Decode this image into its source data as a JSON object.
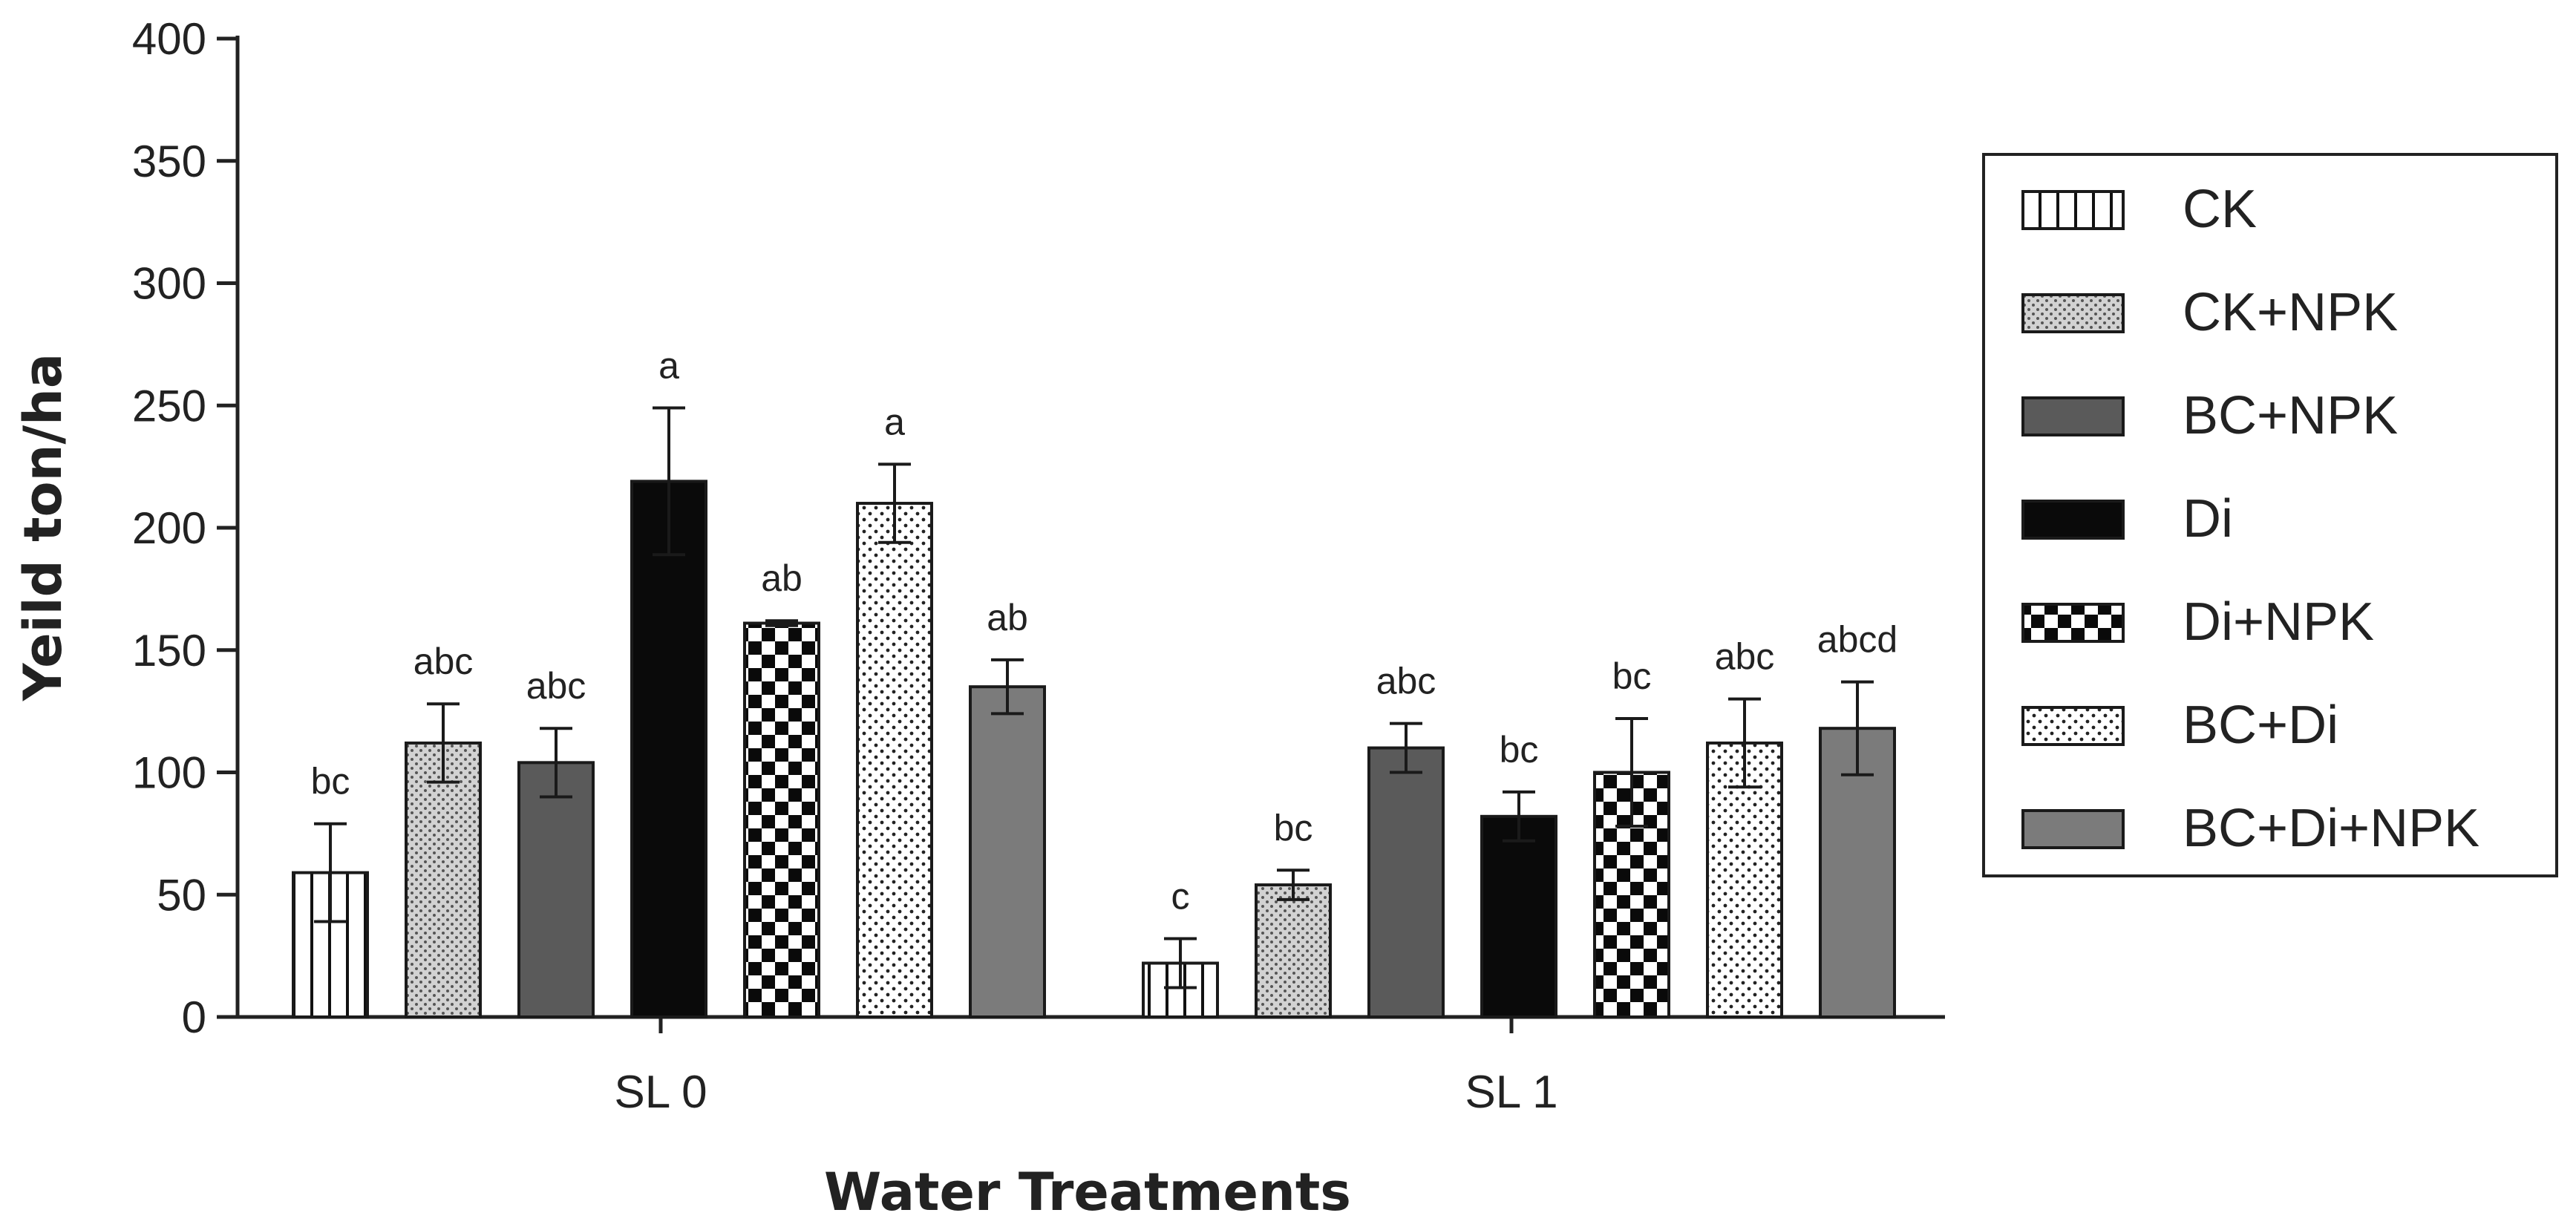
{
  "chart_data": {
    "type": "bar",
    "title": "",
    "xlabel": "Water Treatments",
    "ylabel": "Yeild ton/ha",
    "ylim": [
      0,
      400
    ],
    "yticks": [
      0,
      50,
      100,
      150,
      200,
      250,
      300,
      350,
      400
    ],
    "categories": [
      "SL 0",
      "SL 1"
    ],
    "legend_position": "right",
    "series": [
      {
        "name": "CK",
        "pattern": "vertical-stripes",
        "values": [
          59,
          22
        ],
        "errors": [
          20,
          10
        ],
        "labels": [
          "bc",
          "c"
        ]
      },
      {
        "name": "CK+NPK",
        "pattern": "fine-dots",
        "values": [
          112,
          54
        ],
        "errors": [
          16,
          6
        ],
        "labels": [
          "abc",
          "bc"
        ]
      },
      {
        "name": "BC+NPK",
        "pattern": "dark-gray",
        "values": [
          104,
          110
        ],
        "errors": [
          14,
          10
        ],
        "labels": [
          "abc",
          "abc"
        ]
      },
      {
        "name": "Di",
        "pattern": "black",
        "values": [
          219,
          82
        ],
        "errors": [
          30,
          10
        ],
        "labels": [
          "a",
          "bc"
        ]
      },
      {
        "name": "Di+NPK",
        "pattern": "checkerboard",
        "values": [
          161,
          100
        ],
        "errors": [
          1,
          22
        ],
        "labels": [
          "ab",
          "bc"
        ]
      },
      {
        "name": "BC+Di",
        "pattern": "sparse-dots",
        "values": [
          210,
          112
        ],
        "errors": [
          16,
          18
        ],
        "labels": [
          "a",
          "abc"
        ]
      },
      {
        "name": "BC+Di+NPK",
        "pattern": "medium-gray",
        "values": [
          135,
          118
        ],
        "errors": [
          11,
          19
        ],
        "labels": [
          "ab",
          "abcd"
        ]
      }
    ]
  },
  "colors": {
    "axis": "#222222",
    "dark_gray": "#5a5a5a",
    "medium_gray": "#7b7b7b",
    "black": "#0a0a0a",
    "light_dot_bg": "#d2d2d2"
  }
}
